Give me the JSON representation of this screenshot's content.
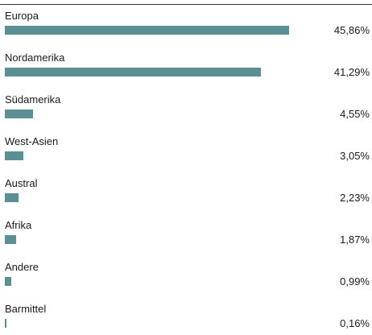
{
  "chart_data": {
    "type": "bar",
    "orientation": "horizontal",
    "categories": [
      "Europa",
      "Nordamerika",
      "Südamerika",
      "West-Asien",
      "Austral",
      "Afrika",
      "Andere",
      "Barmittel"
    ],
    "values": [
      45.86,
      41.29,
      4.55,
      3.05,
      2.23,
      1.87,
      0.99,
      0.16
    ],
    "value_labels": [
      "45,86%",
      "41,29%",
      "4,55%",
      "3,05%",
      "2,23%",
      "1,87%",
      "0,99%",
      "0,16%"
    ],
    "xlim": [
      0,
      45.86
    ],
    "grid": false,
    "legend": "none",
    "bar_color": "#5a8f94"
  }
}
